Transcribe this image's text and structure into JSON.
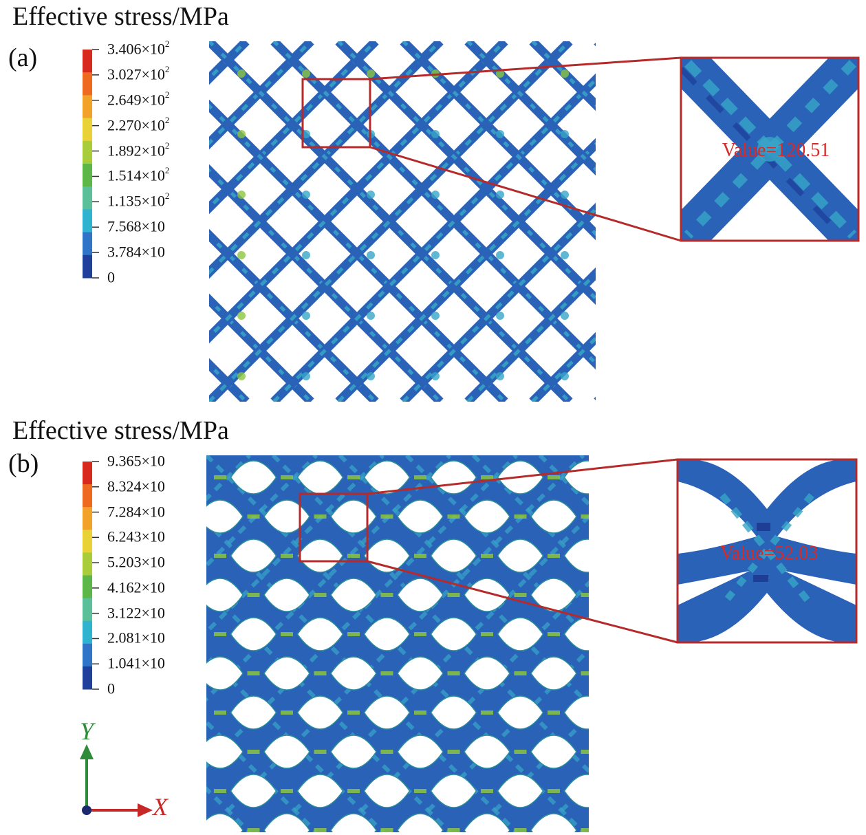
{
  "panels": [
    {
      "title": "Effective stress/MPa",
      "tag": "(a)",
      "legend": [
        {
          "mant": "3.406×10",
          "exp": "2"
        },
        {
          "mant": "3.027×10",
          "exp": "2"
        },
        {
          "mant": "2.649×10",
          "exp": "2"
        },
        {
          "mant": "2.270×10",
          "exp": "2"
        },
        {
          "mant": "1.892×10",
          "exp": "2"
        },
        {
          "mant": "1.514×10",
          "exp": "2"
        },
        {
          "mant": "1.135×10",
          "exp": "2"
        },
        {
          "mant": "7.568×10",
          "exp": ""
        },
        {
          "mant": "3.784×10",
          "exp": ""
        },
        {
          "mant": "0",
          "exp": ""
        }
      ],
      "zoom_value": "Value=120.51"
    },
    {
      "title": "Effective stress/MPa",
      "tag": "(b)",
      "legend": [
        {
          "mant": "9.365×10",
          "exp": ""
        },
        {
          "mant": "8.324×10",
          "exp": ""
        },
        {
          "mant": "7.284×10",
          "exp": ""
        },
        {
          "mant": "6.243×10",
          "exp": ""
        },
        {
          "mant": "5.203×10",
          "exp": ""
        },
        {
          "mant": "4.162×10",
          "exp": ""
        },
        {
          "mant": "3.122×10",
          "exp": ""
        },
        {
          "mant": "2.081×10",
          "exp": ""
        },
        {
          "mant": "1.041×10",
          "exp": ""
        },
        {
          "mant": "0",
          "exp": ""
        }
      ],
      "zoom_value": "Value=52.03"
    }
  ],
  "colorbar_colors": [
    "#d62a1e",
    "#ee6a21",
    "#f2a12a",
    "#e9d237",
    "#a8cc3a",
    "#5cb648",
    "#5bbf9a",
    "#2fb3cf",
    "#2f74c6",
    "#1f3f9a"
  ],
  "strut_colors": {
    "base": "#2a62b8",
    "light": "#37a6c8",
    "hot": "#8cc63e",
    "edge": "#1e3e96"
  },
  "axes": {
    "y": "Y",
    "x": "X"
  }
}
